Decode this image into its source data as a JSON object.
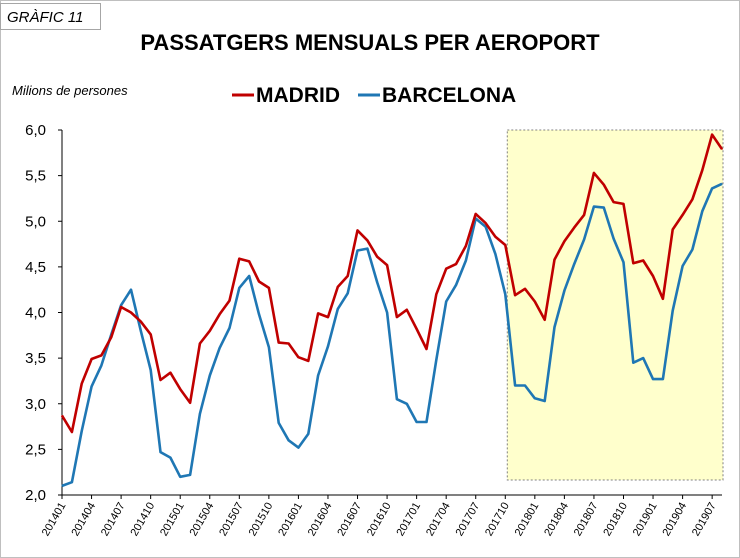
{
  "tag": "GRÀFIC 11",
  "chart_data": {
    "type": "line",
    "title": "PASSATGERS MENSUALS PER AEROPORT",
    "ylabel": "Milions de persones",
    "xlabel": "",
    "ylim": [
      2.0,
      6.0
    ],
    "yticks": [
      "2,0",
      "2,5",
      "3,0",
      "3,5",
      "4,0",
      "4,5",
      "5,0",
      "5,5",
      "6,0"
    ],
    "x": [
      "201401",
      "201402",
      "201403",
      "201404",
      "201405",
      "201406",
      "201407",
      "201408",
      "201409",
      "201410",
      "201411",
      "201412",
      "201501",
      "201502",
      "201503",
      "201504",
      "201505",
      "201506",
      "201507",
      "201508",
      "201509",
      "201510",
      "201511",
      "201512",
      "201601",
      "201602",
      "201603",
      "201604",
      "201605",
      "201606",
      "201607",
      "201608",
      "201609",
      "201610",
      "201611",
      "201612",
      "201701",
      "201702",
      "201703",
      "201704",
      "201705",
      "201706",
      "201707",
      "201708",
      "201709",
      "201710",
      "201711",
      "201712",
      "201801",
      "201802",
      "201803",
      "201804",
      "201805",
      "201806",
      "201807",
      "201808",
      "201809",
      "201810",
      "201811",
      "201812",
      "201901",
      "201902",
      "201903",
      "201904",
      "201905",
      "201906",
      "201907",
      "201908"
    ],
    "xticklabels": [
      "201401",
      "201404",
      "201407",
      "201410",
      "201501",
      "201504",
      "201507",
      "201510",
      "201601",
      "201604",
      "201607",
      "201610",
      "201701",
      "201704",
      "201707",
      "201710",
      "201801",
      "201804",
      "201807",
      "201810",
      "201901",
      "201904",
      "201907"
    ],
    "highlight": {
      "from": "201710",
      "to": "201908",
      "color": "#ffffcc"
    },
    "series": [
      {
        "name": "MADRID",
        "color": "#c00000",
        "values": [
          2.87,
          2.69,
          3.22,
          3.49,
          3.53,
          3.73,
          4.06,
          4.0,
          3.9,
          3.76,
          3.26,
          3.34,
          3.16,
          3.01,
          3.66,
          3.8,
          3.98,
          4.13,
          4.59,
          4.56,
          4.34,
          4.27,
          3.67,
          3.66,
          3.51,
          3.47,
          3.99,
          3.95,
          4.28,
          4.4,
          4.9,
          4.79,
          4.61,
          4.52,
          3.95,
          4.03,
          3.82,
          3.6,
          4.2,
          4.48,
          4.53,
          4.73,
          5.08,
          4.98,
          4.83,
          4.74,
          4.19,
          4.26,
          4.12,
          3.92,
          4.58,
          4.78,
          4.93,
          5.07,
          5.53,
          5.4,
          5.21,
          5.19,
          4.54,
          4.57,
          4.4,
          4.15,
          4.91,
          5.07,
          5.24,
          5.56,
          5.95,
          5.79
        ]
      },
      {
        "name": "BARCELONA",
        "color": "#1f77b4",
        "values": [
          2.1,
          2.14,
          2.7,
          3.19,
          3.42,
          3.76,
          4.08,
          4.25,
          3.8,
          3.37,
          2.47,
          2.41,
          2.2,
          2.22,
          2.89,
          3.31,
          3.61,
          3.83,
          4.27,
          4.4,
          3.98,
          3.62,
          2.79,
          2.6,
          2.52,
          2.67,
          3.31,
          3.63,
          4.04,
          4.21,
          4.68,
          4.7,
          4.33,
          4.0,
          3.05,
          3.0,
          2.8,
          2.8,
          3.48,
          4.12,
          4.3,
          4.57,
          5.03,
          4.94,
          4.64,
          4.2,
          3.2,
          3.2,
          3.06,
          3.03,
          3.84,
          4.24,
          4.53,
          4.8,
          5.16,
          5.15,
          4.81,
          4.55,
          3.45,
          3.5,
          3.27,
          3.27,
          4.02,
          4.51,
          4.69,
          5.11,
          5.36,
          5.41
        ]
      }
    ]
  }
}
